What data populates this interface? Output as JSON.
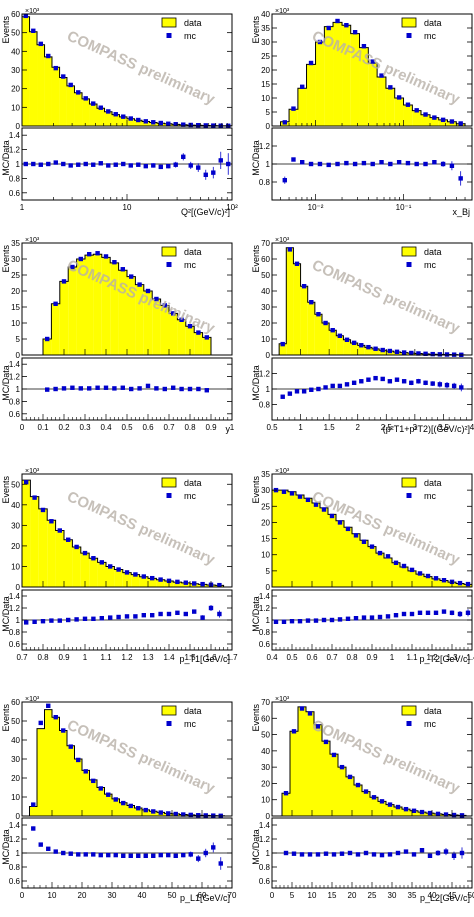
{
  "watermark": "COMPASS preliminary",
  "legend": {
    "data_label": "data",
    "mc_label": "mc",
    "data_fill": "#ffff00",
    "mc_color": "#0000cc"
  },
  "ratio_ylabel": "MC/Data",
  "events_label": "Events",
  "chart_data": [
    {
      "id": "q2",
      "type": "bar",
      "xlabel": "Q²[(GeV/c)²]",
      "xscale": "log",
      "xlim": [
        1,
        100
      ],
      "ylabel": "Events",
      "ymax": 60,
      "multiplier": "×10³",
      "yticks": [
        10,
        20,
        30,
        40,
        50,
        60
      ],
      "xtick_labels": [
        {
          "v": 1,
          "t": "1"
        },
        {
          "v": 10,
          "t": "10"
        },
        {
          "v": 100,
          "t": "10²"
        }
      ],
      "bins": [
        1,
        1.18,
        1.39,
        1.64,
        1.93,
        2.28,
        2.68,
        3.16,
        3.73,
        4.39,
        5.18,
        6.11,
        7.2,
        8.48,
        10,
        11.8,
        13.9,
        16.4,
        19.3,
        22.8,
        26.8,
        31.6,
        37.3,
        43.9,
        51.8,
        61.1,
        72,
        84.8,
        100
      ],
      "data": [
        58.5,
        50.5,
        43.5,
        37,
        31.5,
        26,
        21.5,
        17.8,
        14.5,
        11.8,
        9.5,
        7.6,
        6.1,
        4.9,
        3.9,
        3.1,
        2.4,
        1.9,
        1.5,
        1.2,
        0.9,
        0.7,
        0.5,
        0.4,
        0.3,
        0.2,
        0.15,
        0.1
      ],
      "mc": [
        59,
        51,
        44,
        37.5,
        31,
        26.5,
        22,
        18,
        14.8,
        12,
        9.8,
        7.8,
        6.3,
        5,
        4,
        3.2,
        2.5,
        2,
        1.6,
        1.2,
        0.95,
        0.72,
        0.55,
        0.42,
        0.32,
        0.22,
        0.16,
        0.11
      ],
      "ratio": [
        1.0,
        1.0,
        0.99,
        1.0,
        1.02,
        1.0,
        0.98,
        0.99,
        1.0,
        0.99,
        1.01,
        0.98,
        0.99,
        1.0,
        0.98,
        0.99,
        0.97,
        0.98,
        0.96,
        0.97,
        0.99,
        1.1,
        0.98,
        0.95,
        0.85,
        0.88,
        1.05,
        1.0
      ],
      "ratio_err": [
        0.01,
        0.01,
        0.01,
        0.01,
        0.01,
        0.01,
        0.01,
        0.01,
        0.01,
        0.01,
        0.01,
        0.01,
        0.02,
        0.02,
        0.02,
        0.02,
        0.02,
        0.03,
        0.03,
        0.03,
        0.04,
        0.05,
        0.05,
        0.06,
        0.07,
        0.08,
        0.12,
        0.15
      ],
      "ratio_ylim": [
        0.5,
        1.5
      ],
      "ratio_yticks": [
        0.6,
        0.8,
        1,
        1.2,
        1.4
      ],
      "legend_pos": "top-right"
    },
    {
      "id": "xbj",
      "type": "bar",
      "xlabel": "x_Bj",
      "xscale": "log",
      "xlim": [
        0.0032,
        0.6
      ],
      "ylabel": "Events",
      "ymax": 40,
      "multiplier": "×10³",
      "yticks": [
        5,
        10,
        15,
        20,
        25,
        30,
        35,
        40
      ],
      "xtick_labels": [
        {
          "v": 0.01,
          "t": "10⁻²"
        },
        {
          "v": 0.1,
          "t": "10⁻¹"
        }
      ],
      "bins": [
        0.004,
        0.005,
        0.0063,
        0.0079,
        0.01,
        0.0126,
        0.0158,
        0.02,
        0.0251,
        0.0316,
        0.0398,
        0.0501,
        0.0631,
        0.0794,
        0.1,
        0.126,
        0.158,
        0.2,
        0.251,
        0.316,
        0.398,
        0.5
      ],
      "data": [
        1.5,
        6,
        13.5,
        22,
        30,
        35.5,
        37,
        36,
        33,
        28,
        22.5,
        17.5,
        13.5,
        10,
        7.5,
        5.5,
        4,
        3,
        2.2,
        1.5,
        0.8
      ],
      "mc": [
        1.3,
        6.2,
        14,
        22.5,
        30,
        35,
        37.5,
        36,
        33.5,
        28.5,
        23,
        18,
        13.8,
        10.2,
        7.6,
        5.6,
        4.1,
        3,
        2.2,
        1.6,
        0.9
      ],
      "ratio": [
        0.82,
        1.05,
        1.02,
        1.0,
        1.0,
        0.99,
        1.0,
        1.01,
        1.0,
        1.01,
        1.0,
        1.02,
        1.0,
        1.02,
        1.01,
        1.0,
        1.0,
        1.02,
        1.0,
        0.98,
        0.84
      ],
      "ratio_err": [
        0.04,
        0.02,
        0.01,
        0.01,
        0.01,
        0.01,
        0.01,
        0.01,
        0.01,
        0.01,
        0.01,
        0.01,
        0.01,
        0.01,
        0.01,
        0.02,
        0.02,
        0.02,
        0.03,
        0.05,
        0.08
      ],
      "ratio_ylim": [
        0.6,
        1.4
      ],
      "ratio_yticks": [
        0.8,
        1,
        1.2
      ],
      "legend_pos": "top-right"
    },
    {
      "id": "y",
      "type": "bar",
      "xlabel": "y",
      "xscale": "linear",
      "xlim": [
        0,
        1
      ],
      "ylabel": "Events",
      "ymax": 35,
      "multiplier": "×10³",
      "yticks": [
        5,
        10,
        15,
        20,
        25,
        30,
        35
      ],
      "xticks": [
        0,
        0.1,
        0.2,
        0.3,
        0.4,
        0.5,
        0.6,
        0.7,
        0.8,
        0.9,
        1
      ],
      "bins": [
        0.1,
        0.14,
        0.18,
        0.22,
        0.26,
        0.3,
        0.34,
        0.38,
        0.42,
        0.46,
        0.5,
        0.54,
        0.58,
        0.62,
        0.66,
        0.7,
        0.74,
        0.78,
        0.82,
        0.86,
        0.9
      ],
      "data": [
        5,
        16,
        23,
        27.5,
        30,
        31.2,
        31.5,
        30.5,
        28.8,
        26.5,
        24.5,
        22,
        20,
        17.5,
        15.5,
        13,
        11,
        9,
        7,
        5.5
      ],
      "mc": [
        5,
        16,
        23,
        27.5,
        30,
        31.5,
        31.8,
        30.8,
        29,
        26.8,
        24.5,
        22,
        20,
        17.5,
        15.5,
        13,
        11,
        9,
        7,
        5.5
      ],
      "ratio": [
        0.99,
        1.0,
        1.01,
        1.02,
        1.01,
        1.01,
        1.02,
        1.02,
        1.01,
        1.02,
        1.0,
        1.01,
        1.05,
        1.01,
        1.0,
        1.02,
        1.0,
        1.0,
        1.0,
        0.98
      ],
      "ratio_err": [
        0.02,
        0.01,
        0.01,
        0.01,
        0.01,
        0.01,
        0.01,
        0.01,
        0.01,
        0.01,
        0.01,
        0.01,
        0.01,
        0.01,
        0.01,
        0.01,
        0.01,
        0.02,
        0.02,
        0.02
      ],
      "ratio_ylim": [
        0.5,
        1.5
      ],
      "ratio_yticks": [
        0.6,
        0.8,
        1,
        1.2,
        1.4
      ],
      "legend_pos": "top-right"
    },
    {
      "id": "pt2sum",
      "type": "bar",
      "xlabel": "(p²T1+p²T2)[(GeV/c)²]",
      "xscale": "linear",
      "xlim": [
        0.5,
        4
      ],
      "ylabel": "Events",
      "ymax": 70,
      "multiplier": "×10³",
      "yticks": [
        10,
        20,
        30,
        40,
        50,
        60,
        70
      ],
      "xticks": [
        0.5,
        1,
        1.5,
        2,
        2.5,
        3,
        3.5,
        4
      ],
      "xtick_labels_lin": [
        "0.5",
        "1",
        "1.5",
        "2",
        "2.5",
        "3",
        "3.5",
        "4"
      ],
      "bins": [
        0.625,
        0.75,
        0.875,
        1,
        1.125,
        1.25,
        1.375,
        1.5,
        1.625,
        1.75,
        1.875,
        2,
        2.125,
        2.25,
        2.375,
        2.5,
        2.625,
        2.75,
        2.875,
        3,
        3.125,
        3.25,
        3.375,
        3.5,
        3.625,
        3.75,
        3.875
      ],
      "data": [
        7,
        67,
        57,
        43,
        33,
        25.5,
        20,
        15.5,
        12,
        9.5,
        7.5,
        6,
        4.8,
        3.8,
        3,
        2.4,
        1.9,
        1.5,
        1.2,
        0.9,
        0.7,
        0.5,
        0.4,
        0.3,
        0.2,
        0.1
      ],
      "mc": [
        6.8,
        66,
        57,
        43,
        33,
        25.5,
        20,
        15.5,
        12,
        9.5,
        7.6,
        6.1,
        4.9,
        3.9,
        3.1,
        2.5,
        2,
        1.55,
        1.25,
        0.95,
        0.75,
        0.55,
        0.42,
        0.32,
        0.22,
        0.12
      ],
      "ratio": [
        0.9,
        0.94,
        0.97,
        0.97,
        0.99,
        1.0,
        1.02,
        1.04,
        1.04,
        1.06,
        1.08,
        1.1,
        1.12,
        1.14,
        1.13,
        1.1,
        1.12,
        1.1,
        1.08,
        1.1,
        1.08,
        1.07,
        1.06,
        1.05,
        1.04,
        1.02
      ],
      "ratio_err": [
        0.02,
        0.01,
        0.01,
        0.01,
        0.01,
        0.01,
        0.01,
        0.01,
        0.01,
        0.01,
        0.01,
        0.01,
        0.01,
        0.02,
        0.02,
        0.02,
        0.02,
        0.02,
        0.03,
        0.03,
        0.03,
        0.03,
        0.04,
        0.04,
        0.04,
        0.05
      ],
      "ratio_ylim": [
        0.6,
        1.4
      ],
      "ratio_yticks": [
        0.8,
        1,
        1.2
      ],
      "legend_pos": "top-right"
    },
    {
      "id": "pt1",
      "type": "bar",
      "xlabel": "p_T1[GeV/c]",
      "xscale": "linear",
      "xlim": [
        0.7,
        1.7
      ],
      "ylabel": "Events",
      "ymax": 55,
      "multiplier": "×10³",
      "yticks": [
        10,
        20,
        30,
        40,
        50
      ],
      "xticks": [
        0.7,
        0.8,
        0.9,
        1,
        1.1,
        1.2,
        1.3,
        1.4,
        1.5,
        1.6,
        1.7
      ],
      "bins": [
        0.7,
        0.74,
        0.78,
        0.82,
        0.86,
        0.9,
        0.94,
        0.98,
        1.02,
        1.06,
        1.1,
        1.14,
        1.18,
        1.22,
        1.26,
        1.3,
        1.34,
        1.38,
        1.42,
        1.46,
        1.5,
        1.54,
        1.58,
        1.62,
        1.66
      ],
      "data": [
        52,
        44,
        38,
        32.5,
        27.5,
        23,
        19.5,
        16.5,
        14,
        12,
        10,
        8.5,
        7,
        6,
        5,
        4.2,
        3.5,
        2.9,
        2.4,
        2,
        1.6,
        1.3,
        1,
        0.8
      ],
      "mc": [
        51,
        43.5,
        37.5,
        32,
        27.5,
        23,
        19.5,
        16.5,
        14,
        12,
        10,
        8.5,
        7.1,
        6.1,
        5.1,
        4.3,
        3.6,
        3,
        2.5,
        2.1,
        1.7,
        1.4,
        1.1,
        0.9
      ],
      "ratio": [
        0.96,
        0.97,
        0.98,
        0.99,
        0.99,
        1.0,
        1.01,
        1.02,
        1.02,
        1.03,
        1.04,
        1.05,
        1.06,
        1.06,
        1.08,
        1.08,
        1.1,
        1.1,
        1.12,
        1.1,
        1.14,
        1.04,
        1.2,
        1.1
      ],
      "ratio_err": [
        0.01,
        0.01,
        0.01,
        0.01,
        0.01,
        0.01,
        0.01,
        0.01,
        0.01,
        0.01,
        0.01,
        0.01,
        0.01,
        0.01,
        0.01,
        0.02,
        0.02,
        0.02,
        0.02,
        0.03,
        0.03,
        0.04,
        0.05,
        0.06
      ],
      "ratio_ylim": [
        0.5,
        1.5
      ],
      "ratio_yticks": [
        0.6,
        0.8,
        1,
        1.2,
        1.4
      ],
      "legend_pos": "top-right"
    },
    {
      "id": "pt2",
      "type": "bar",
      "xlabel": "p_T2[GeV/c]",
      "xscale": "linear",
      "xlim": [
        0.4,
        1.4
      ],
      "ylabel": "Events",
      "ymax": 35,
      "multiplier": "×10³",
      "yticks": [
        5,
        10,
        15,
        20,
        25,
        30,
        35
      ],
      "xticks": [
        0.4,
        0.5,
        0.6,
        0.7,
        0.8,
        0.9,
        1,
        1.1,
        1.2,
        1.3,
        1.4
      ],
      "bins": [
        0.4,
        0.44,
        0.48,
        0.52,
        0.56,
        0.6,
        0.64,
        0.68,
        0.72,
        0.76,
        0.8,
        0.84,
        0.88,
        0.92,
        0.96,
        1,
        1.04,
        1.08,
        1.12,
        1.16,
        1.2,
        1.24,
        1.28,
        1.32,
        1.36,
        1.4
      ],
      "data": [
        30,
        30,
        29.5,
        28.5,
        27.5,
        26,
        24.5,
        22.5,
        20.5,
        18.5,
        16.5,
        14.5,
        12.5,
        10.5,
        9,
        7.5,
        6.2,
        5,
        4,
        3.2,
        2.5,
        2,
        1.5,
        1.1,
        0.8
      ],
      "mc": [
        30,
        29.5,
        29,
        28,
        27,
        25.5,
        24,
        22,
        20,
        18,
        16,
        14,
        12.5,
        10.5,
        9.5,
        7.5,
        6.5,
        5.3,
        4.2,
        3.4,
        2.7,
        2.1,
        1.6,
        1.2,
        0.9
      ],
      "ratio": [
        0.97,
        0.97,
        0.98,
        0.98,
        0.99,
        0.99,
        1.0,
        1.0,
        1.01,
        1.02,
        1.03,
        1.04,
        1.04,
        1.05,
        1.06,
        1.08,
        1.1,
        1.1,
        1.12,
        1.12,
        1.12,
        1.14,
        1.12,
        1.1,
        1.12
      ],
      "ratio_err": [
        0.01,
        0.01,
        0.01,
        0.01,
        0.01,
        0.01,
        0.01,
        0.01,
        0.01,
        0.01,
        0.01,
        0.01,
        0.01,
        0.01,
        0.01,
        0.01,
        0.02,
        0.02,
        0.02,
        0.02,
        0.03,
        0.03,
        0.04,
        0.05,
        0.06
      ],
      "ratio_ylim": [
        0.5,
        1.5
      ],
      "ratio_yticks": [
        0.6,
        0.8,
        1,
        1.2,
        1.4
      ],
      "legend_pos": "top-right"
    },
    {
      "id": "pl1",
      "type": "bar",
      "xlabel": "p_L1[GeV/c]",
      "xscale": "linear",
      "xlim": [
        0,
        70
      ],
      "ylabel": "Events",
      "ymax": 60,
      "multiplier": "×10³",
      "yticks": [
        10,
        20,
        30,
        40,
        50,
        60
      ],
      "xticks": [
        0,
        10,
        20,
        30,
        40,
        50,
        60,
        70
      ],
      "bins": [
        2.5,
        5,
        7.5,
        10,
        12.5,
        15,
        17.5,
        20,
        22.5,
        25,
        27.5,
        30,
        32.5,
        35,
        37.5,
        40,
        42.5,
        45,
        47.5,
        50,
        52.5,
        55,
        57.5,
        60,
        62.5,
        65,
        67.5
      ],
      "data": [
        5,
        46,
        56,
        52,
        45,
        37,
        30,
        24,
        19,
        15,
        11.5,
        9,
        7,
        5.5,
        4.2,
        3.2,
        2.5,
        1.9,
        1.4,
        1.1,
        0.8,
        0.6,
        0.4,
        0.3,
        0.2,
        0.1
      ],
      "mc": [
        6,
        49,
        58,
        52,
        45,
        36.5,
        29.5,
        23.5,
        18.5,
        14.5,
        11.2,
        8.7,
        6.8,
        5.3,
        4.1,
        3.1,
        2.4,
        1.8,
        1.35,
        1.05,
        0.78,
        0.58,
        0.4,
        0.3,
        0.2,
        0.1
      ],
      "ratio": [
        1.35,
        1.12,
        1.06,
        1.02,
        1.0,
        0.99,
        0.98,
        0.98,
        0.98,
        0.97,
        0.97,
        0.97,
        0.96,
        0.96,
        0.96,
        0.96,
        0.96,
        0.97,
        0.97,
        0.96,
        0.97,
        0.98,
        0.92,
        1.0,
        1.08,
        0.85
      ],
      "ratio_err": [
        0.03,
        0.01,
        0.01,
        0.01,
        0.01,
        0.01,
        0.01,
        0.01,
        0.01,
        0.01,
        0.01,
        0.01,
        0.01,
        0.01,
        0.01,
        0.01,
        0.02,
        0.02,
        0.02,
        0.02,
        0.03,
        0.04,
        0.05,
        0.06,
        0.07,
        0.09
      ],
      "ratio_ylim": [
        0.5,
        1.5
      ],
      "ratio_yticks": [
        0.6,
        0.8,
        1,
        1.2,
        1.4
      ],
      "legend_pos": "top-right"
    },
    {
      "id": "pl2",
      "type": "bar",
      "xlabel": "p_L2[GeV/c]",
      "xscale": "linear",
      "xlim": [
        0,
        50
      ],
      "ylabel": "Events",
      "ymax": 70,
      "multiplier": "×10³",
      "yticks": [
        10,
        20,
        30,
        40,
        50,
        60,
        70
      ],
      "xticks": [
        0,
        5,
        10,
        15,
        20,
        25,
        30,
        35,
        40,
        45,
        50
      ],
      "bins": [
        2.5,
        4.5,
        6.5,
        8.5,
        10.5,
        12.5,
        14.5,
        16.5,
        18.5,
        20.5,
        22.5,
        24.5,
        26.5,
        28.5,
        30.5,
        32.5,
        34.5,
        36.5,
        38.5,
        40.5,
        42.5,
        44.5,
        46.5,
        48.5
      ],
      "data": [
        14,
        52,
        67,
        64,
        56,
        46,
        38,
        30,
        24,
        19,
        15,
        11.5,
        9,
        7,
        5.5,
        4.2,
        3.2,
        2.4,
        1.8,
        1.3,
        0.9,
        0.6,
        0.4
      ],
      "mc": [
        14,
        52,
        66,
        63,
        55,
        45.5,
        37.5,
        30,
        24,
        19,
        15,
        11.5,
        9,
        7,
        5.5,
        4.2,
        3.2,
        2.4,
        1.8,
        1.3,
        0.9,
        0.6,
        0.4
      ],
      "ratio": [
        1.0,
        0.99,
        0.98,
        0.98,
        0.98,
        0.99,
        0.98,
        0.99,
        1.0,
        0.98,
        1.0,
        0.98,
        0.97,
        0.98,
        1.0,
        1.02,
        0.98,
        1.04,
        0.96,
        1.0,
        1.02,
        0.96,
        1.0
      ],
      "ratio_err": [
        0.02,
        0.01,
        0.01,
        0.01,
        0.01,
        0.01,
        0.01,
        0.01,
        0.01,
        0.01,
        0.01,
        0.01,
        0.01,
        0.02,
        0.02,
        0.02,
        0.02,
        0.03,
        0.03,
        0.04,
        0.05,
        0.06,
        0.08
      ],
      "ratio_ylim": [
        0.5,
        1.5
      ],
      "ratio_yticks": [
        0.6,
        0.8,
        1,
        1.2,
        1.4
      ],
      "legend_pos": "top-right"
    }
  ]
}
